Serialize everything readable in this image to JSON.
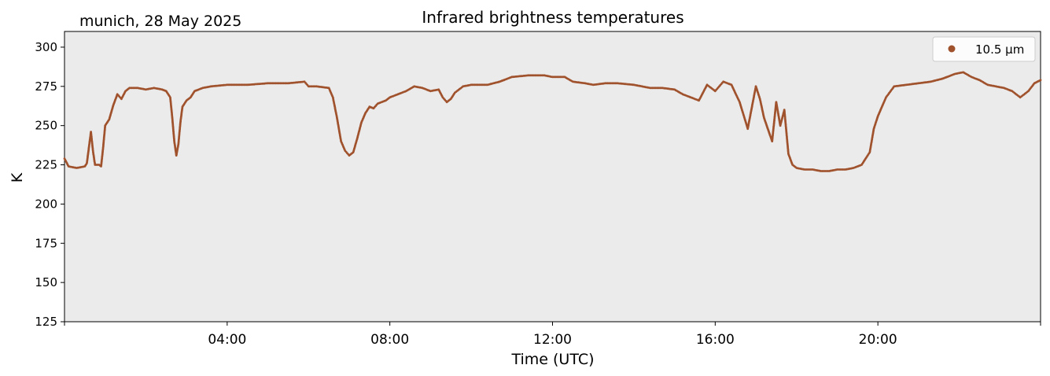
{
  "chart_data": {
    "type": "scatter",
    "title": "Infrared brightness temperatures",
    "subtitle": "munich, 28 May 2025",
    "xlabel": "Time (UTC)",
    "ylabel": "K",
    "xlim_hours": [
      0,
      24
    ],
    "ylim": [
      125,
      310
    ],
    "yticks": [
      125,
      150,
      175,
      200,
      225,
      250,
      275,
      300
    ],
    "xticks": [
      {
        "hour": 4,
        "label": "04:00"
      },
      {
        "hour": 8,
        "label": "08:00"
      },
      {
        "hour": 12,
        "label": "12:00"
      },
      {
        "hour": 16,
        "label": "16:00"
      },
      {
        "hour": 20,
        "label": "20:00"
      }
    ],
    "grid": false,
    "legend_position": "top-right",
    "series": [
      {
        "name": "10.5 µm",
        "color": "#a0522d",
        "points": [
          [
            0.0,
            229
          ],
          [
            0.1,
            224
          ],
          [
            0.3,
            223
          ],
          [
            0.5,
            224
          ],
          [
            0.55,
            226
          ],
          [
            0.6,
            236
          ],
          [
            0.65,
            246
          ],
          [
            0.7,
            234
          ],
          [
            0.75,
            225
          ],
          [
            0.85,
            225
          ],
          [
            0.9,
            224
          ],
          [
            0.95,
            236
          ],
          [
            1.0,
            250
          ],
          [
            1.1,
            254
          ],
          [
            1.2,
            263
          ],
          [
            1.3,
            270
          ],
          [
            1.4,
            267
          ],
          [
            1.5,
            272
          ],
          [
            1.6,
            274
          ],
          [
            1.8,
            274
          ],
          [
            2.0,
            273
          ],
          [
            2.2,
            274
          ],
          [
            2.4,
            273
          ],
          [
            2.5,
            272
          ],
          [
            2.6,
            268
          ],
          [
            2.65,
            255
          ],
          [
            2.7,
            240
          ],
          [
            2.75,
            231
          ],
          [
            2.8,
            238
          ],
          [
            2.85,
            252
          ],
          [
            2.9,
            262
          ],
          [
            3.0,
            266
          ],
          [
            3.1,
            268
          ],
          [
            3.2,
            272
          ],
          [
            3.4,
            274
          ],
          [
            3.6,
            275
          ],
          [
            4.0,
            276
          ],
          [
            4.5,
            276
          ],
          [
            5.0,
            277
          ],
          [
            5.5,
            277
          ],
          [
            5.9,
            278
          ],
          [
            6.0,
            275
          ],
          [
            6.2,
            275
          ],
          [
            6.5,
            274
          ],
          [
            6.6,
            268
          ],
          [
            6.7,
            255
          ],
          [
            6.8,
            240
          ],
          [
            6.9,
            234
          ],
          [
            7.0,
            231
          ],
          [
            7.1,
            233
          ],
          [
            7.2,
            242
          ],
          [
            7.3,
            252
          ],
          [
            7.4,
            258
          ],
          [
            7.5,
            262
          ],
          [
            7.6,
            261
          ],
          [
            7.7,
            264
          ],
          [
            7.9,
            266
          ],
          [
            8.0,
            268
          ],
          [
            8.2,
            270
          ],
          [
            8.4,
            272
          ],
          [
            8.6,
            275
          ],
          [
            8.8,
            274
          ],
          [
            9.0,
            272
          ],
          [
            9.2,
            273
          ],
          [
            9.3,
            268
          ],
          [
            9.4,
            265
          ],
          [
            9.5,
            267
          ],
          [
            9.6,
            271
          ],
          [
            9.8,
            275
          ],
          [
            10.0,
            276
          ],
          [
            10.4,
            276
          ],
          [
            10.7,
            278
          ],
          [
            11.0,
            281
          ],
          [
            11.4,
            282
          ],
          [
            11.8,
            282
          ],
          [
            12.0,
            281
          ],
          [
            12.3,
            281
          ],
          [
            12.5,
            278
          ],
          [
            12.8,
            277
          ],
          [
            13.0,
            276
          ],
          [
            13.3,
            277
          ],
          [
            13.6,
            277
          ],
          [
            14.0,
            276
          ],
          [
            14.4,
            274
          ],
          [
            14.7,
            274
          ],
          [
            15.0,
            273
          ],
          [
            15.2,
            270
          ],
          [
            15.4,
            268
          ],
          [
            15.6,
            266
          ],
          [
            15.8,
            276
          ],
          [
            16.0,
            272
          ],
          [
            16.2,
            278
          ],
          [
            16.4,
            276
          ],
          [
            16.6,
            265
          ],
          [
            16.8,
            248
          ],
          [
            17.0,
            275
          ],
          [
            17.1,
            267
          ],
          [
            17.2,
            255
          ],
          [
            17.4,
            240
          ],
          [
            17.5,
            265
          ],
          [
            17.6,
            250
          ],
          [
            17.7,
            260
          ],
          [
            17.8,
            232
          ],
          [
            17.9,
            225
          ],
          [
            18.0,
            223
          ],
          [
            18.2,
            222
          ],
          [
            18.4,
            222
          ],
          [
            18.6,
            221
          ],
          [
            18.8,
            221
          ],
          [
            19.0,
            222
          ],
          [
            19.2,
            222
          ],
          [
            19.4,
            223
          ],
          [
            19.6,
            225
          ],
          [
            19.8,
            233
          ],
          [
            19.9,
            248
          ],
          [
            20.0,
            256
          ],
          [
            20.2,
            268
          ],
          [
            20.4,
            275
          ],
          [
            20.7,
            276
          ],
          [
            21.0,
            277
          ],
          [
            21.3,
            278
          ],
          [
            21.6,
            280
          ],
          [
            21.9,
            283
          ],
          [
            22.1,
            284
          ],
          [
            22.3,
            281
          ],
          [
            22.5,
            279
          ],
          [
            22.7,
            276
          ],
          [
            22.9,
            275
          ],
          [
            23.1,
            274
          ],
          [
            23.3,
            272
          ],
          [
            23.5,
            268
          ],
          [
            23.7,
            272
          ],
          [
            23.85,
            277
          ],
          [
            24.0,
            279
          ]
        ]
      }
    ]
  }
}
